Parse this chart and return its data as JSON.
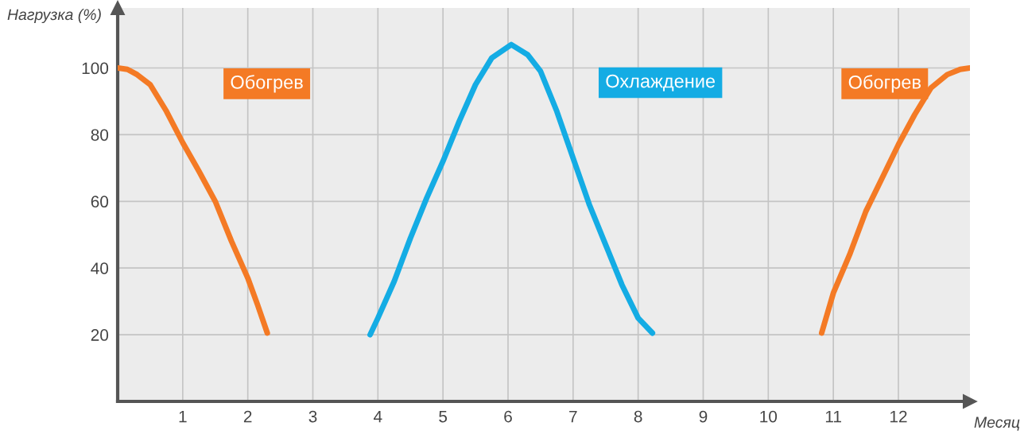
{
  "chart_data": {
    "type": "line",
    "xlabel": "Месяц",
    "ylabel": "Нагрузка (%)",
    "xlim": [
      0,
      13.1
    ],
    "ylim": [
      0,
      118
    ],
    "xticks": [
      1,
      2,
      3,
      4,
      5,
      6,
      7,
      8,
      9,
      10,
      11,
      12
    ],
    "yticks": [
      20,
      40,
      60,
      80,
      100
    ],
    "grid": true,
    "marker": "none",
    "line_style": "solid",
    "series": [
      {
        "name": "Обогрев",
        "color": "#f47a25",
        "x": [
          0,
          0.15,
          0.3,
          0.5,
          0.75,
          1,
          1.25,
          1.5,
          1.75,
          2,
          2.15,
          2.3
        ],
        "values": [
          100,
          99.6,
          98,
          95,
          87,
          77.6,
          69,
          60,
          48,
          37,
          29,
          20.5
        ]
      },
      {
        "name": "Охлаждение",
        "color": "#14ace4",
        "x": [
          3.88,
          4,
          4.25,
          4.5,
          4.75,
          5,
          5.25,
          5.5,
          5.75,
          6.05,
          6.3,
          6.5,
          6.75,
          7,
          7.25,
          7.5,
          7.75,
          8,
          8.22
        ],
        "values": [
          20,
          25,
          36,
          49,
          61,
          72,
          84,
          95,
          103,
          107,
          104,
          99,
          87,
          73,
          59,
          47,
          35,
          25,
          20.5
        ]
      },
      {
        "name": "Обогрев",
        "color": "#f47a25",
        "x": [
          10.82,
          11,
          11.25,
          11.5,
          11.75,
          12,
          12.25,
          12.5,
          12.75,
          12.95,
          13.1
        ],
        "values": [
          20.5,
          32.5,
          44,
          57,
          67,
          77,
          86,
          94,
          98,
          99.6,
          100
        ]
      }
    ]
  }
}
